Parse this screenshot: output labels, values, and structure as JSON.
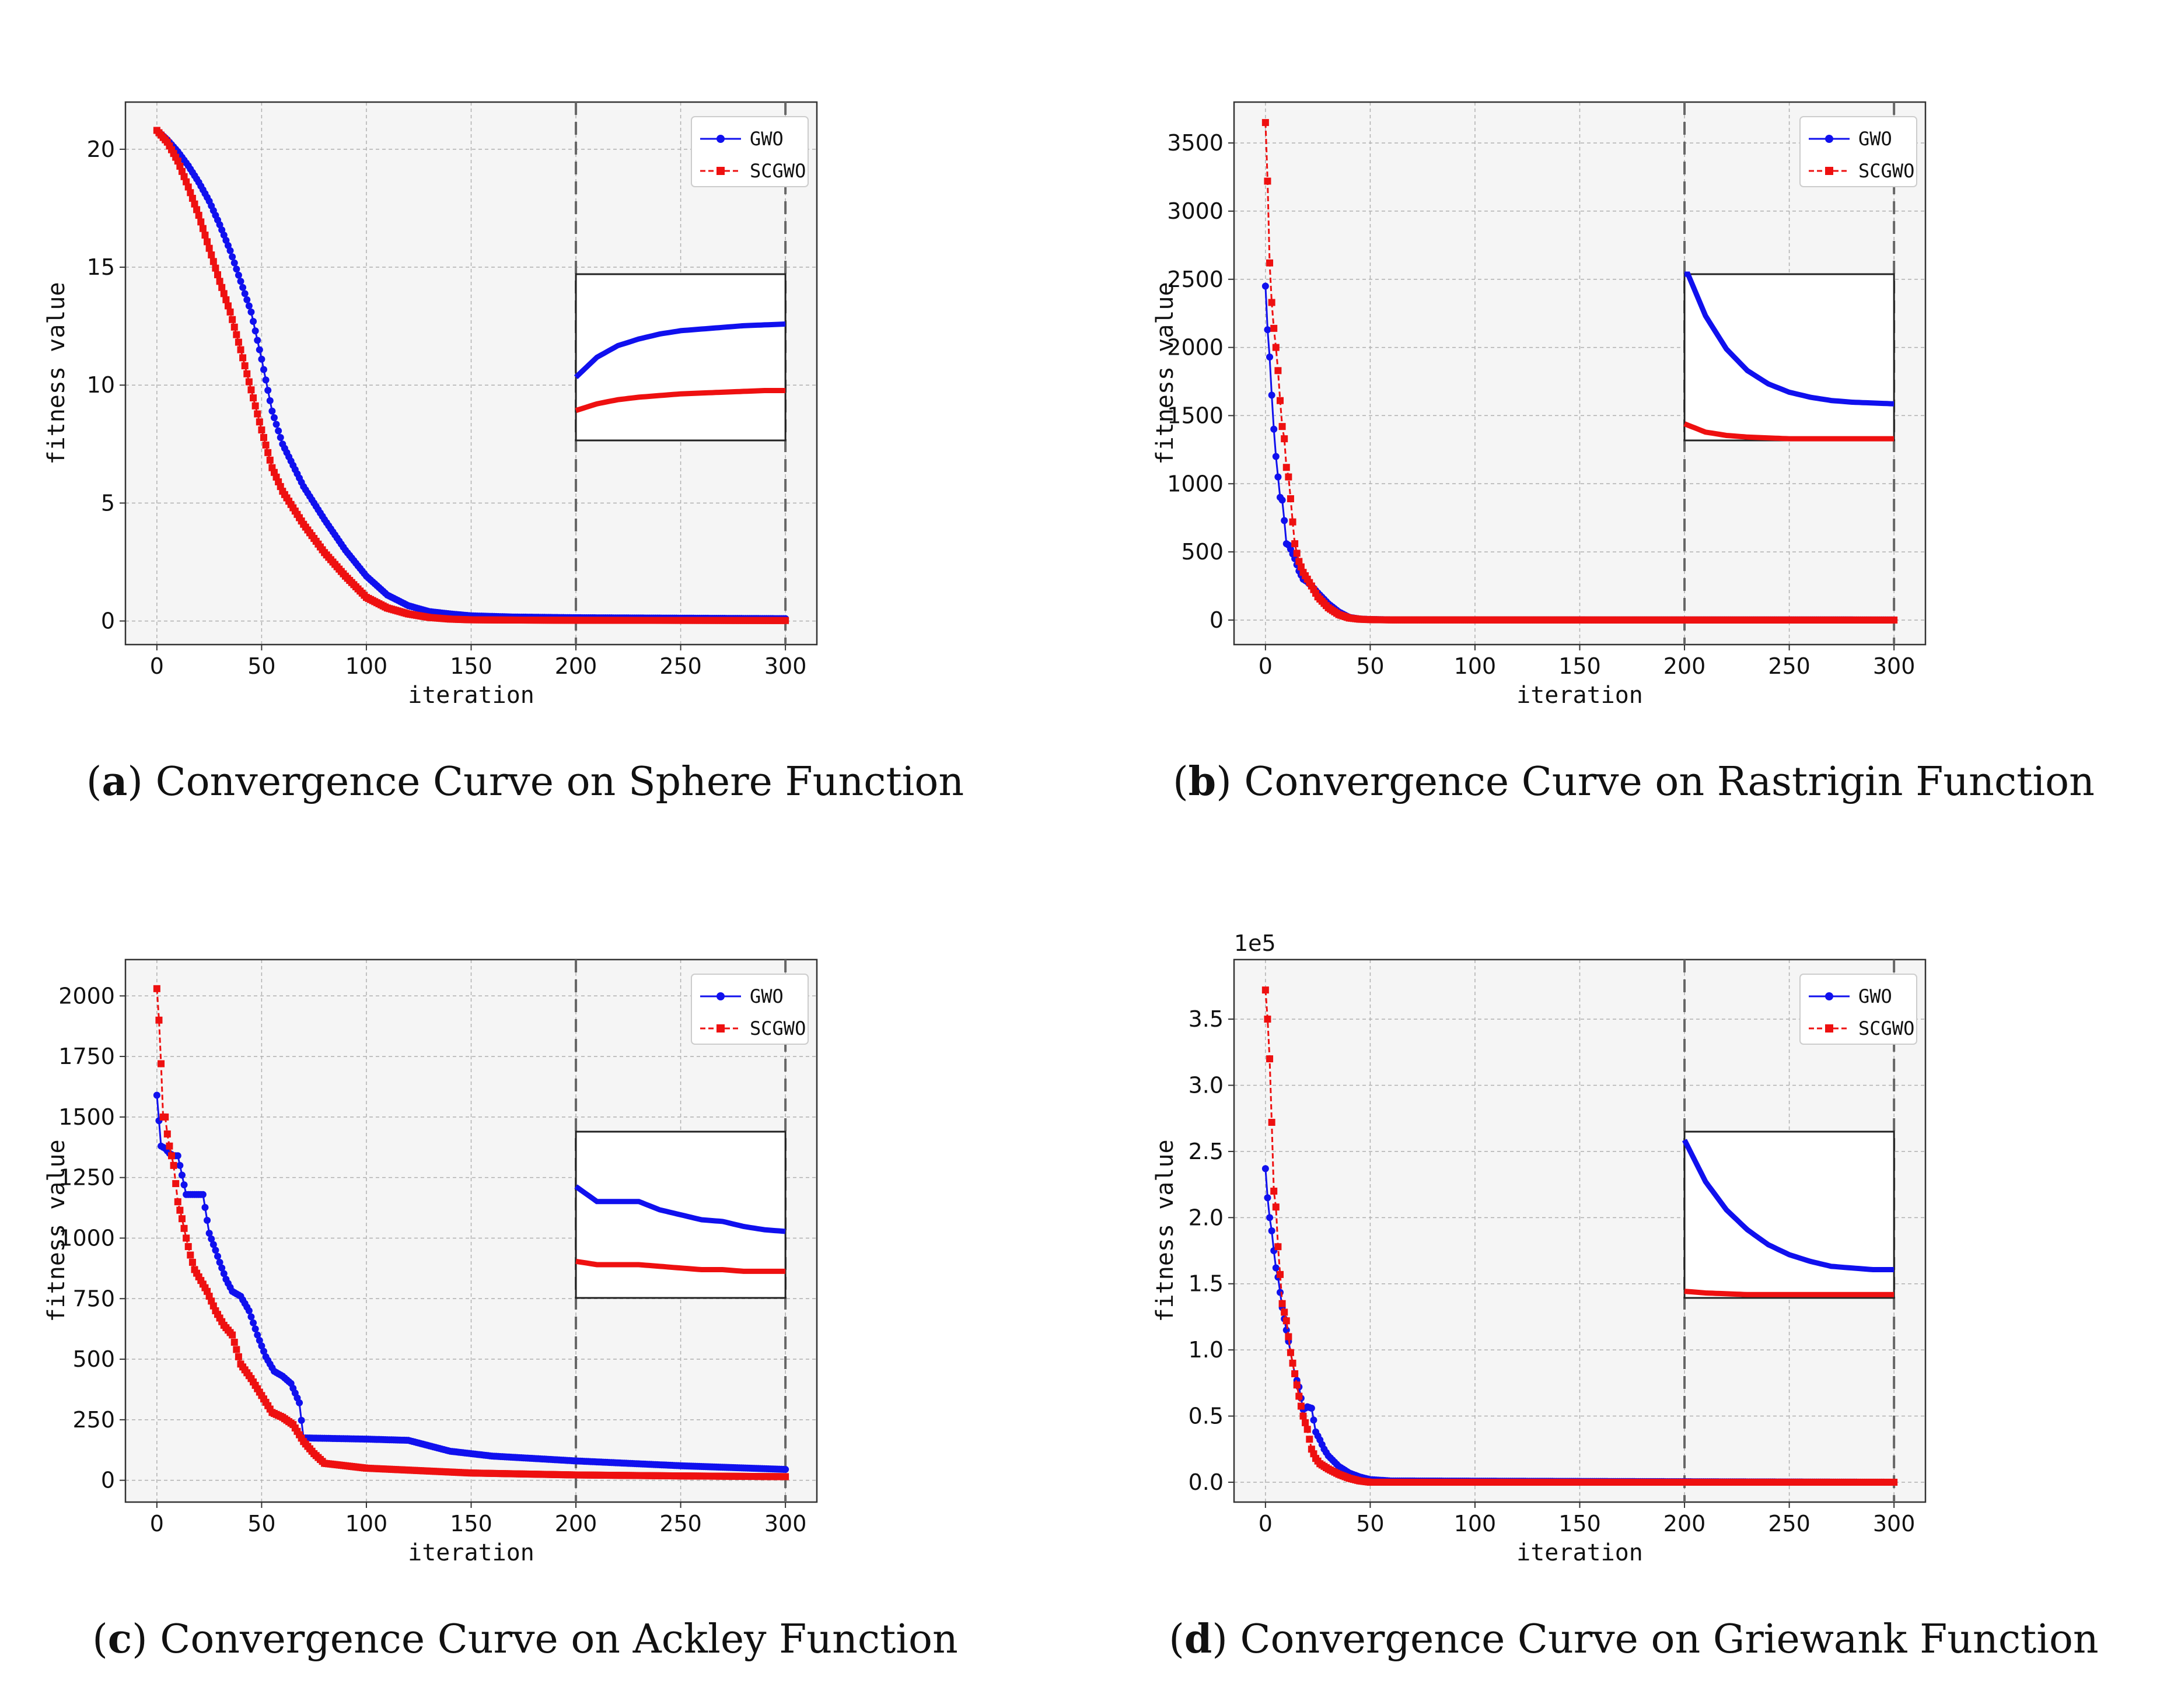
{
  "colors": {
    "gwo": "#1010ee",
    "scgwo": "#ee1010",
    "plot_bg": "#f5f5f5",
    "grid": "#b0b0b0"
  },
  "chart_data": [
    {
      "id": "a",
      "type": "line",
      "caption_letter": "a",
      "caption_text": "Convergence Curve on Sphere Function",
      "xlabel": "iteration",
      "ylabel": "fitness value",
      "xlim": [
        -15,
        315
      ],
      "ylim": [
        -1,
        22
      ],
      "xticks": [
        0,
        50,
        100,
        150,
        200,
        250,
        300
      ],
      "yticks": [
        0,
        5,
        10,
        15,
        20
      ],
      "ytick_labels": [
        "0",
        "5",
        "10",
        "15",
        "20"
      ],
      "scale_label": "",
      "zoom_window": [
        200,
        300
      ],
      "legend": [
        "GWO",
        "SCGWO"
      ],
      "series": [
        {
          "name": "GWO",
          "x": [
            0,
            5,
            10,
            15,
            20,
            25,
            30,
            35,
            40,
            45,
            50,
            55,
            60,
            70,
            80,
            90,
            100,
            110,
            120,
            130,
            140,
            150,
            170,
            200,
            300
          ],
          "values": [
            20.8,
            20.4,
            19.9,
            19.3,
            18.6,
            17.8,
            16.8,
            15.7,
            14.4,
            13.1,
            11.1,
            8.9,
            7.5,
            5.7,
            4.3,
            3.0,
            1.9,
            1.1,
            0.65,
            0.4,
            0.3,
            0.22,
            0.17,
            0.14,
            0.1
          ]
        },
        {
          "name": "SCGWO",
          "x": [
            0,
            5,
            10,
            15,
            20,
            25,
            30,
            35,
            40,
            45,
            50,
            55,
            60,
            70,
            80,
            90,
            100,
            110,
            120,
            130,
            140,
            150,
            170,
            200,
            300
          ],
          "values": [
            20.8,
            20.3,
            19.5,
            18.4,
            17.2,
            15.8,
            14.4,
            13.1,
            11.5,
            9.8,
            8.1,
            6.5,
            5.5,
            4.1,
            2.9,
            1.9,
            1.0,
            0.55,
            0.3,
            0.15,
            0.08,
            0.05,
            0.04,
            0.03,
            0.02
          ]
        }
      ],
      "zoom_series": [
        {
          "name": "GWO",
          "values": [
            0.62,
            0.5,
            0.43,
            0.39,
            0.36,
            0.34,
            0.33,
            0.32,
            0.31,
            0.305,
            0.3
          ]
        },
        {
          "name": "SCGWO",
          "values": [
            0.82,
            0.78,
            0.755,
            0.74,
            0.73,
            0.72,
            0.715,
            0.71,
            0.705,
            0.7,
            0.7
          ]
        }
      ]
    },
    {
      "id": "b",
      "type": "line",
      "caption_letter": "b",
      "caption_text": "Convergence Curve on Rastrigin Function",
      "xlabel": "iteration",
      "ylabel": "fitness value",
      "xlim": [
        -15,
        315
      ],
      "ylim": [
        -180,
        3800
      ],
      "xticks": [
        0,
        50,
        100,
        150,
        200,
        250,
        300
      ],
      "yticks": [
        0,
        500,
        1000,
        1500,
        2000,
        2500,
        3000,
        3500
      ],
      "ytick_labels": [
        "0",
        "500",
        "1000",
        "1500",
        "2000",
        "2500",
        "3000",
        "3500"
      ],
      "scale_label": "",
      "zoom_window": [
        200,
        300
      ],
      "legend": [
        "GWO",
        "SCGWO"
      ],
      "series": [
        {
          "name": "GWO",
          "x": [
            0,
            1,
            2,
            3,
            4,
            5,
            6,
            7,
            8,
            9,
            10,
            11,
            12,
            14,
            16,
            18,
            20,
            22,
            25,
            30,
            35,
            40,
            45,
            50,
            60,
            300
          ],
          "values": [
            2450,
            2130,
            1930,
            1650,
            1400,
            1200,
            1050,
            900,
            880,
            730,
            560,
            550,
            520,
            450,
            360,
            300,
            280,
            250,
            200,
            120,
            60,
            20,
            8,
            4,
            2,
            1
          ]
        },
        {
          "name": "SCGWO",
          "x": [
            0,
            1,
            2,
            3,
            4,
            5,
            6,
            7,
            8,
            9,
            10,
            11,
            12,
            13,
            14,
            15,
            16,
            18,
            20,
            22,
            25,
            30,
            35,
            40,
            45,
            50,
            60,
            300
          ],
          "values": [
            3650,
            3220,
            2620,
            2330,
            2140,
            2000,
            1830,
            1610,
            1420,
            1330,
            1120,
            1050,
            890,
            720,
            560,
            490,
            430,
            350,
            300,
            250,
            170,
            90,
            40,
            15,
            6,
            3,
            1,
            0
          ]
        }
      ],
      "zoom_series": [
        {
          "name": "GWO",
          "values": [
            -0.05,
            0.25,
            0.45,
            0.58,
            0.66,
            0.71,
            0.74,
            0.76,
            0.77,
            0.775,
            0.78
          ]
        },
        {
          "name": "SCGWO",
          "values": [
            0.9,
            0.95,
            0.97,
            0.98,
            0.985,
            0.99,
            0.99,
            0.99,
            0.99,
            0.99,
            0.99
          ]
        }
      ]
    },
    {
      "id": "c",
      "type": "line",
      "caption_letter": "c",
      "caption_text": "Convergence Curve on Ackley Function",
      "xlabel": "iteration",
      "ylabel": "fitness value",
      "xlim": [
        -15,
        315
      ],
      "ylim": [
        -90,
        2150
      ],
      "xticks": [
        0,
        50,
        100,
        150,
        200,
        250,
        300
      ],
      "yticks": [
        0,
        250,
        500,
        750,
        1000,
        1250,
        1500,
        1750,
        2000
      ],
      "ytick_labels": [
        "0",
        "250",
        "500",
        "750",
        "1000",
        "1250",
        "1500",
        "1750",
        "2000"
      ],
      "scale_label": "",
      "zoom_window": [
        200,
        300
      ],
      "legend": [
        "GWO",
        "SCGWO"
      ],
      "series": [
        {
          "name": "GWO",
          "x": [
            0,
            2,
            4,
            6,
            8,
            10,
            14,
            18,
            22,
            25,
            28,
            30,
            33,
            36,
            40,
            44,
            48,
            52,
            56,
            60,
            64,
            68,
            70,
            100,
            120,
            140,
            160,
            200,
            250,
            300
          ],
          "values": [
            1590,
            1380,
            1370,
            1350,
            1340,
            1340,
            1180,
            1180,
            1180,
            1020,
            950,
            900,
            830,
            780,
            760,
            700,
            600,
            510,
            450,
            430,
            400,
            320,
            175,
            170,
            165,
            120,
            100,
            80,
            60,
            45
          ]
        },
        {
          "name": "SCGWO",
          "x": [
            0,
            1,
            2,
            3,
            4,
            5,
            6,
            8,
            10,
            12,
            14,
            16,
            18,
            20,
            24,
            28,
            32,
            36,
            40,
            45,
            50,
            55,
            60,
            65,
            70,
            75,
            80,
            100,
            150,
            200,
            250,
            300
          ],
          "values": [
            2030,
            1900,
            1720,
            1500,
            1500,
            1430,
            1380,
            1300,
            1150,
            1080,
            1000,
            930,
            870,
            840,
            780,
            700,
            640,
            600,
            480,
            420,
            350,
            280,
            260,
            230,
            160,
            110,
            70,
            50,
            30,
            22,
            18,
            15
          ]
        }
      ],
      "zoom_series": [
        {
          "name": "GWO",
          "values": [
            0.33,
            0.42,
            0.42,
            0.42,
            0.47,
            0.5,
            0.53,
            0.54,
            0.57,
            0.59,
            0.6
          ]
        },
        {
          "name": "SCGWO",
          "values": [
            0.78,
            0.8,
            0.8,
            0.8,
            0.81,
            0.82,
            0.83,
            0.83,
            0.84,
            0.84,
            0.84
          ]
        }
      ]
    },
    {
      "id": "d",
      "type": "line",
      "caption_letter": "d",
      "caption_text": "Convergence Curve on Griewank Function",
      "xlabel": "iteration",
      "ylabel": "fitness value",
      "xlim": [
        -15,
        315
      ],
      "ylim": [
        -0.15,
        3.95
      ],
      "xticks": [
        0,
        50,
        100,
        150,
        200,
        250,
        300
      ],
      "yticks": [
        0,
        0.5,
        1.0,
        1.5,
        2.0,
        2.5,
        3.0,
        3.5
      ],
      "ytick_labels": [
        "0.0",
        "0.5",
        "1.0",
        "1.5",
        "2.0",
        "2.5",
        "3.0",
        "3.5"
      ],
      "scale_label": "1e5",
      "zoom_window": [
        200,
        300
      ],
      "legend": [
        "GWO",
        "SCGWO"
      ],
      "series": [
        {
          "name": "GWO",
          "x": [
            0,
            1,
            2,
            3,
            4,
            5,
            6,
            8,
            10,
            12,
            14,
            16,
            18,
            20,
            22,
            24,
            26,
            28,
            30,
            35,
            40,
            45,
            50,
            60,
            300
          ],
          "values": [
            2.37,
            2.15,
            2.0,
            1.9,
            1.75,
            1.62,
            1.55,
            1.32,
            1.15,
            0.98,
            0.82,
            0.72,
            0.55,
            0.57,
            0.56,
            0.38,
            0.32,
            0.25,
            0.2,
            0.12,
            0.07,
            0.04,
            0.02,
            0.01,
            0.0
          ]
        },
        {
          "name": "SCGWO",
          "x": [
            0,
            1,
            2,
            3,
            4,
            5,
            6,
            7,
            8,
            10,
            12,
            14,
            16,
            18,
            20,
            22,
            24,
            26,
            28,
            30,
            35,
            40,
            45,
            50,
            60,
            300
          ],
          "values": [
            3.72,
            3.5,
            3.2,
            2.72,
            2.2,
            2.08,
            1.78,
            1.57,
            1.35,
            1.22,
            0.98,
            0.82,
            0.65,
            0.5,
            0.4,
            0.25,
            0.18,
            0.14,
            0.12,
            0.1,
            0.06,
            0.03,
            0.01,
            0.0,
            0.0,
            0.0
          ]
        }
      ],
      "zoom_series": [
        {
          "name": "GWO",
          "values": [
            0.05,
            0.3,
            0.47,
            0.59,
            0.68,
            0.74,
            0.78,
            0.81,
            0.82,
            0.83,
            0.83
          ]
        },
        {
          "name": "SCGWO",
          "values": [
            0.96,
            0.97,
            0.975,
            0.98,
            0.98,
            0.98,
            0.98,
            0.98,
            0.98,
            0.98,
            0.98
          ]
        }
      ]
    }
  ]
}
